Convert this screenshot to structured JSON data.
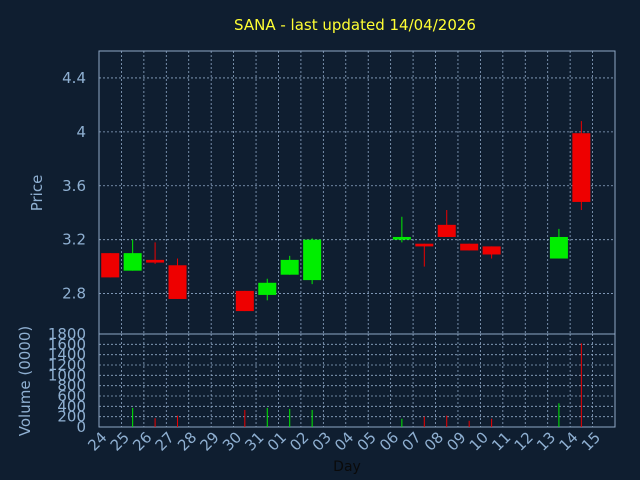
{
  "chart_data": [
    {
      "type": "candlestick",
      "title": "SANA - last updated 14/04/2026",
      "ylabel": "Price",
      "ylim": [
        2.5,
        4.6
      ],
      "yticks": [
        "2.8",
        "3.2",
        "3.6",
        "4",
        "4.4"
      ],
      "ytick_values": [
        2.8,
        3.2,
        3.6,
        4.0,
        4.4
      ],
      "grid": true,
      "categories": [
        "24",
        "25",
        "26",
        "27",
        "28",
        "29",
        "30",
        "31",
        "01",
        "02",
        "03",
        "04",
        "05",
        "06",
        "07",
        "08",
        "09",
        "10",
        "11",
        "12",
        "13",
        "14",
        "15"
      ],
      "candles": [
        {
          "day": "24",
          "open": 3.1,
          "high": 3.1,
          "low": 2.92,
          "close": 2.92,
          "color": "red"
        },
        {
          "day": "25",
          "open": 2.97,
          "high": 3.2,
          "low": 2.97,
          "close": 3.1,
          "color": "green"
        },
        {
          "day": "26",
          "open": 3.05,
          "high": 3.18,
          "low": 3.02,
          "close": 3.03,
          "color": "red"
        },
        {
          "day": "27",
          "open": 3.01,
          "high": 3.06,
          "low": 2.76,
          "close": 2.76,
          "color": "red"
        },
        {
          "day": "30",
          "open": 2.82,
          "high": 2.82,
          "low": 2.67,
          "close": 2.67,
          "color": "red"
        },
        {
          "day": "31",
          "open": 2.79,
          "high": 2.91,
          "low": 2.75,
          "close": 2.88,
          "color": "green"
        },
        {
          "day": "01",
          "open": 2.94,
          "high": 3.08,
          "low": 2.94,
          "close": 3.05,
          "color": "green"
        },
        {
          "day": "02",
          "open": 2.9,
          "high": 3.21,
          "low": 2.87,
          "close": 3.2,
          "color": "green"
        },
        {
          "day": "06",
          "open": 3.2,
          "high": 3.37,
          "low": 3.18,
          "close": 3.22,
          "color": "green"
        },
        {
          "day": "07",
          "open": 3.17,
          "high": 3.17,
          "low": 3.0,
          "close": 3.15,
          "color": "red"
        },
        {
          "day": "08",
          "open": 3.31,
          "high": 3.42,
          "low": 3.22,
          "close": 3.22,
          "color": "red"
        },
        {
          "day": "09",
          "open": 3.17,
          "high": 3.17,
          "low": 3.12,
          "close": 3.12,
          "color": "red"
        },
        {
          "day": "10",
          "open": 3.15,
          "high": 3.15,
          "low": 3.06,
          "close": 3.09,
          "color": "red"
        },
        {
          "day": "13",
          "open": 3.06,
          "high": 3.28,
          "low": 3.06,
          "close": 3.22,
          "color": "green"
        },
        {
          "day": "14",
          "open": 3.99,
          "high": 4.08,
          "low": 3.42,
          "close": 3.48,
          "color": "red"
        }
      ]
    },
    {
      "type": "bar",
      "ylabel": "Volume (0000)",
      "xlabel": "Day",
      "ylim": [
        0,
        1800
      ],
      "yticks": [
        "0",
        "200",
        "400",
        "600",
        "800",
        "1000",
        "1200",
        "1400",
        "1600",
        "1800"
      ],
      "ytick_values": [
        0,
        200,
        400,
        600,
        800,
        1000,
        1200,
        1400,
        1600,
        1800
      ],
      "grid": true,
      "categories": [
        "24",
        "25",
        "26",
        "27",
        "28",
        "29",
        "30",
        "31",
        "01",
        "02",
        "03",
        "04",
        "05",
        "06",
        "07",
        "08",
        "09",
        "10",
        "11",
        "12",
        "13",
        "14",
        "15"
      ],
      "bars": [
        {
          "day": "24",
          "value": 0,
          "color": "red"
        },
        {
          "day": "25",
          "value": 370,
          "color": "green"
        },
        {
          "day": "26",
          "value": 170,
          "color": "red"
        },
        {
          "day": "27",
          "value": 220,
          "color": "red"
        },
        {
          "day": "30",
          "value": 330,
          "color": "red"
        },
        {
          "day": "31",
          "value": 370,
          "color": "green"
        },
        {
          "day": "01",
          "value": 350,
          "color": "green"
        },
        {
          "day": "02",
          "value": 330,
          "color": "green"
        },
        {
          "day": "06",
          "value": 160,
          "color": "green"
        },
        {
          "day": "07",
          "value": 200,
          "color": "red"
        },
        {
          "day": "08",
          "value": 220,
          "color": "red"
        },
        {
          "day": "09",
          "value": 120,
          "color": "red"
        },
        {
          "day": "10",
          "value": 160,
          "color": "red"
        },
        {
          "day": "13",
          "value": 460,
          "color": "green"
        },
        {
          "day": "14",
          "value": 1620,
          "color": "red"
        }
      ]
    }
  ],
  "colors": {
    "background": "#0f1e30",
    "plot_background": "#0f1e30",
    "grid": "#8fa8c6",
    "axis_text": "#8fb0d2",
    "title": "#ffff33",
    "up": "#00ee00",
    "down": "#ee0000"
  }
}
